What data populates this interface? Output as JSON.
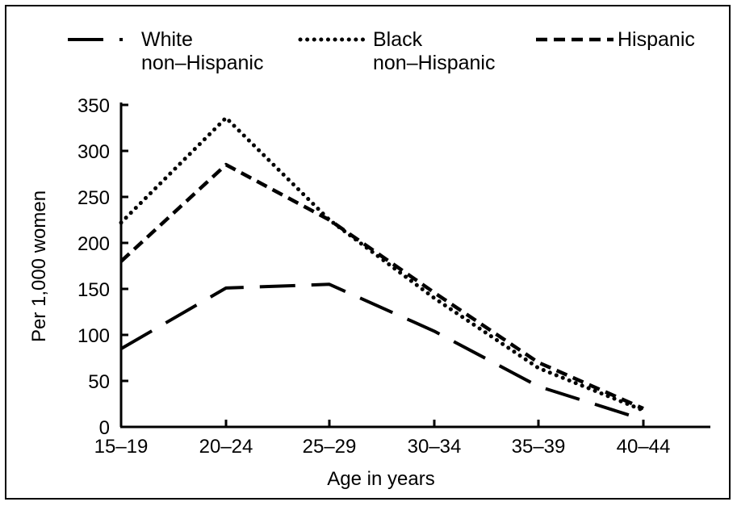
{
  "chart_data": {
    "type": "line",
    "xlabel": "Age in years",
    "ylabel": "Per 1,000 women",
    "categories": [
      "15–19",
      "20–24",
      "25–29",
      "30–34",
      "35–39",
      "40–44"
    ],
    "ylim": [
      0,
      350
    ],
    "yticks": [
      0,
      50,
      100,
      150,
      200,
      250,
      300,
      350
    ],
    "grid": false,
    "legend_position": "top",
    "series": [
      {
        "name": "White\nnon-Hispanic",
        "style": "long-dash",
        "values": [
          85,
          151,
          155,
          104,
          44,
          8
        ]
      },
      {
        "name": "Black\nnon-Hispanic",
        "style": "dotted",
        "values": [
          222,
          336,
          225,
          140,
          64,
          18
        ]
      },
      {
        "name": "Hispanic",
        "style": "dashed",
        "values": [
          180,
          285,
          225,
          146,
          70,
          20
        ]
      }
    ]
  },
  "colors": {
    "line": "#000000",
    "background": "#ffffff"
  }
}
